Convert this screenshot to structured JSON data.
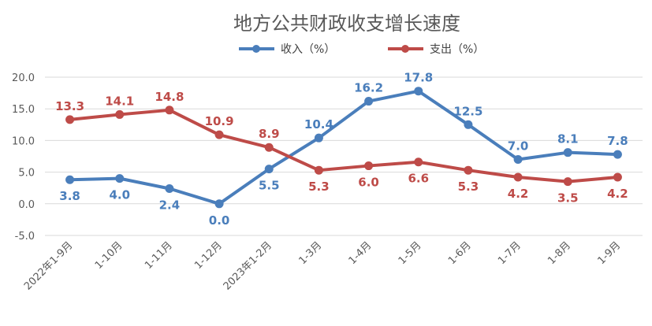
{
  "chart_data": {
    "type": "line",
    "title": "地方公共财政收支增长速度",
    "categories": [
      "2022年1-9月",
      "1-10月",
      "1-11月",
      "1-12月",
      "2023年1-2月",
      "1-3月",
      "1-4月",
      "1-5月",
      "1-6月",
      "1-7月",
      "1-8月",
      "1-9月"
    ],
    "series": [
      {
        "name": "收入（%）",
        "color": "#4A7EBB",
        "values": [
          3.8,
          4.0,
          2.4,
          0.0,
          5.5,
          10.4,
          16.2,
          17.8,
          12.5,
          7.0,
          8.1,
          7.8
        ],
        "labels": [
          "3.8",
          "4.0",
          "2.4",
          "0.0",
          "5.5",
          "10.4",
          "16.2",
          "17.8",
          "12.5",
          "7.0",
          "8.1",
          "7.8"
        ]
      },
      {
        "name": "支出（%）",
        "color": "#BE4B48",
        "values": [
          13.3,
          14.1,
          14.8,
          10.9,
          8.9,
          5.3,
          6.0,
          6.6,
          5.3,
          4.2,
          3.5,
          4.2
        ],
        "labels": [
          "13.3",
          "14.1",
          "14.8",
          "10.9",
          "8.9",
          "5.3",
          "6.0",
          "6.6",
          "5.3",
          "4.2",
          "3.5",
          "4.2"
        ]
      }
    ],
    "yticks": [
      "20.0",
      "15.0",
      "10.0",
      "5.0",
      "0.0",
      "-5.0"
    ],
    "ylim": [
      -5,
      20
    ],
    "grid": true,
    "legend": "top"
  }
}
